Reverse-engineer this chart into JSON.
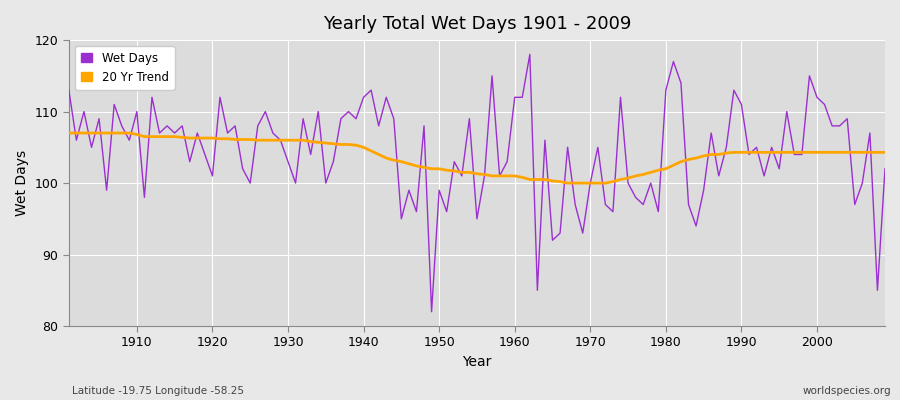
{
  "title": "Yearly Total Wet Days 1901 - 2009",
  "xlabel": "Year",
  "ylabel": "Wet Days",
  "footer_left": "Latitude -19.75 Longitude -58.25",
  "footer_right": "worldspecies.org",
  "ylim": [
    80,
    120
  ],
  "xlim": [
    1901,
    2009
  ],
  "yticks": [
    80,
    90,
    100,
    110,
    120
  ],
  "xticks": [
    1910,
    1920,
    1930,
    1940,
    1950,
    1960,
    1970,
    1980,
    1990,
    2000
  ],
  "wet_days_color": "#9b30d0",
  "trend_color": "#ffa500",
  "figure_bg_color": "#e8e8e8",
  "plot_bg_color": "#dcdcdc",
  "grid_color": "#ffffff",
  "legend_labels": [
    "Wet Days",
    "20 Yr Trend"
  ],
  "years": [
    1901,
    1902,
    1903,
    1904,
    1905,
    1906,
    1907,
    1908,
    1909,
    1910,
    1911,
    1912,
    1913,
    1914,
    1915,
    1916,
    1917,
    1918,
    1919,
    1920,
    1921,
    1922,
    1923,
    1924,
    1925,
    1926,
    1927,
    1928,
    1929,
    1930,
    1931,
    1932,
    1933,
    1934,
    1935,
    1936,
    1937,
    1938,
    1939,
    1940,
    1941,
    1942,
    1943,
    1944,
    1945,
    1946,
    1947,
    1948,
    1949,
    1950,
    1951,
    1952,
    1953,
    1954,
    1955,
    1956,
    1957,
    1958,
    1959,
    1960,
    1961,
    1962,
    1963,
    1964,
    1965,
    1966,
    1967,
    1968,
    1969,
    1970,
    1971,
    1972,
    1973,
    1974,
    1975,
    1976,
    1977,
    1978,
    1979,
    1980,
    1981,
    1982,
    1983,
    1984,
    1985,
    1986,
    1987,
    1988,
    1989,
    1990,
    1991,
    1992,
    1993,
    1994,
    1995,
    1996,
    1997,
    1998,
    1999,
    2000,
    2001,
    2002,
    2003,
    2004,
    2005,
    2006,
    2007,
    2008,
    2009
  ],
  "wet_days": [
    113,
    106,
    110,
    105,
    109,
    99,
    111,
    108,
    106,
    110,
    98,
    112,
    107,
    108,
    107,
    108,
    103,
    107,
    104,
    101,
    112,
    107,
    108,
    102,
    100,
    108,
    110,
    107,
    106,
    103,
    100,
    109,
    104,
    110,
    100,
    103,
    109,
    110,
    109,
    112,
    113,
    108,
    112,
    109,
    95,
    99,
    96,
    108,
    82,
    99,
    96,
    103,
    101,
    109,
    95,
    101,
    115,
    101,
    103,
    112,
    112,
    118,
    85,
    106,
    92,
    93,
    105,
    97,
    93,
    100,
    105,
    97,
    96,
    112,
    100,
    98,
    97,
    100,
    96,
    113,
    117,
    114,
    97,
    94,
    99,
    107,
    101,
    105,
    113,
    111,
    104,
    105,
    101,
    105,
    102,
    110,
    104,
    104,
    115,
    112,
    111,
    108,
    108,
    109,
    97,
    100,
    107,
    85,
    102
  ],
  "trend": [
    107.0,
    107.0,
    107.0,
    107.0,
    107.0,
    107.0,
    107.0,
    107.0,
    107.0,
    106.8,
    106.5,
    106.5,
    106.5,
    106.5,
    106.5,
    106.4,
    106.3,
    106.3,
    106.3,
    106.3,
    106.2,
    106.2,
    106.1,
    106.1,
    106.1,
    106.0,
    106.0,
    106.0,
    106.0,
    106.0,
    106.0,
    106.0,
    105.8,
    105.7,
    105.6,
    105.5,
    105.4,
    105.4,
    105.3,
    105.0,
    104.5,
    104.0,
    103.5,
    103.2,
    103.0,
    102.7,
    102.4,
    102.2,
    102.0,
    102.0,
    101.8,
    101.7,
    101.5,
    101.5,
    101.3,
    101.2,
    101.0,
    101.0,
    101.0,
    101.0,
    100.8,
    100.5,
    100.5,
    100.5,
    100.3,
    100.2,
    100.0,
    100.0,
    100.0,
    100.0,
    100.0,
    100.0,
    100.2,
    100.5,
    100.7,
    101.0,
    101.2,
    101.5,
    101.8,
    102.0,
    102.5,
    103.0,
    103.3,
    103.5,
    103.8,
    104.0,
    104.0,
    104.2,
    104.3,
    104.3,
    104.3,
    104.3,
    104.3,
    104.3,
    104.3,
    104.3,
    104.3,
    104.3,
    104.3,
    104.3,
    104.3,
    104.3,
    104.3,
    104.3,
    104.3,
    104.3,
    104.3,
    104.3,
    104.3
  ]
}
